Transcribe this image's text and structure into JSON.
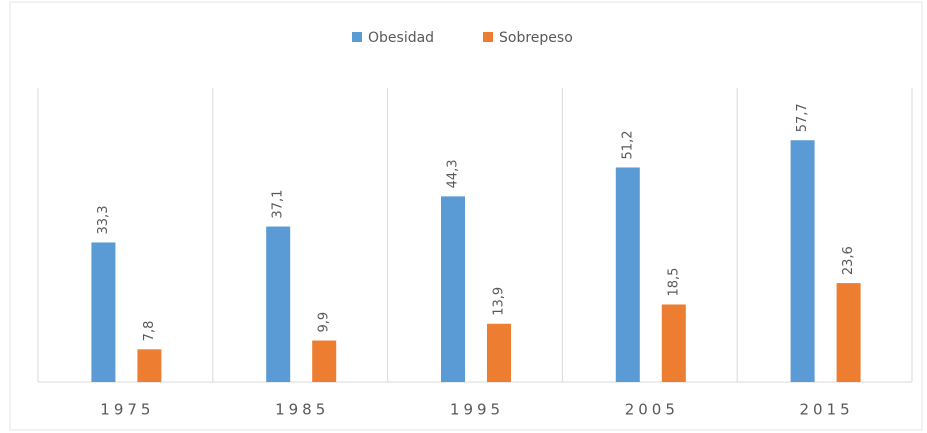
{
  "chart_data": {
    "type": "bar",
    "categories": [
      "1975",
      "1985",
      "1995",
      "2005",
      "2015"
    ],
    "series": [
      {
        "name": "Obesidad",
        "color": "#5b9bd5",
        "values": [
          33.3,
          37.1,
          44.3,
          51.2,
          57.7
        ],
        "value_labels": [
          "33,3",
          "37,1",
          "44,3",
          "51,2",
          "57,7"
        ]
      },
      {
        "name": "Sobrepeso",
        "color": "#ed7d31",
        "values": [
          7.8,
          9.9,
          13.9,
          18.5,
          23.6
        ],
        "value_labels": [
          "7,8",
          "9,9",
          "13,9",
          "18,5",
          "23,6"
        ]
      }
    ],
    "legend": "top"
  }
}
